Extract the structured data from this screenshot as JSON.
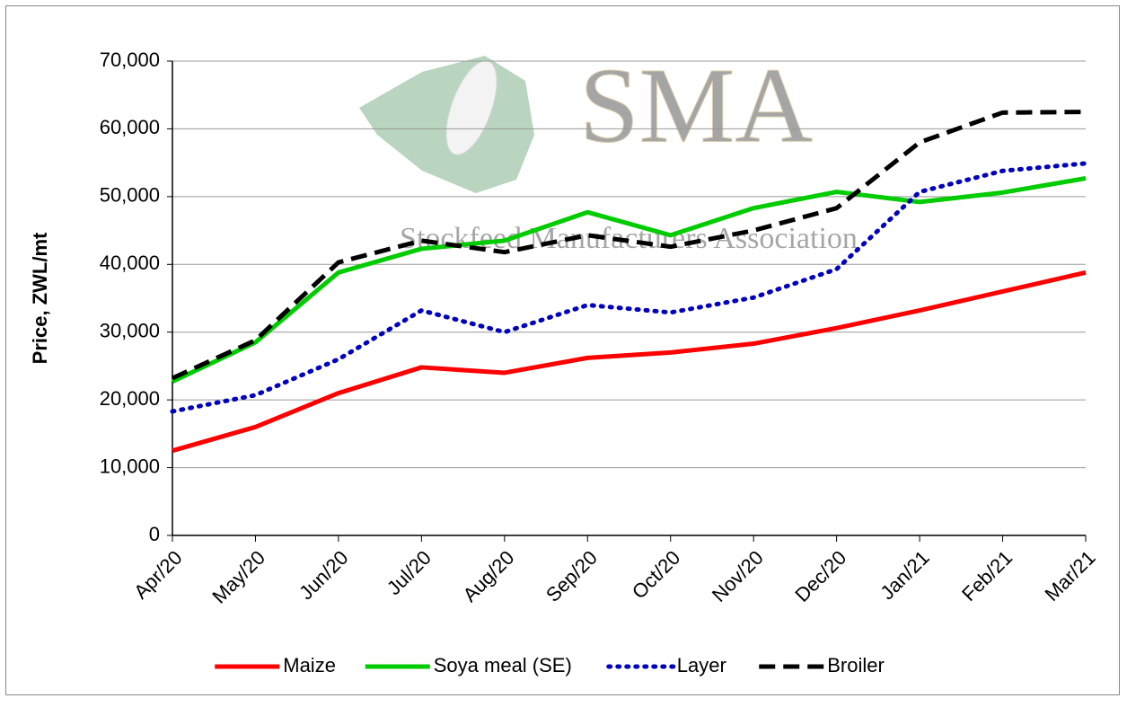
{
  "chart_data": {
    "type": "line",
    "y_label": "Price, ZWL/mt",
    "watermark": {
      "logo": "SMA",
      "subtitle": "Stockfeed Manufacturers Association"
    },
    "categories": [
      "Apr/20",
      "May/20",
      "Jun/20",
      "Jul/20",
      "Aug/20",
      "Sep/20",
      "Oct/20",
      "Nov/20",
      "Dec/20",
      "Jan/21",
      "Feb/21",
      "Mar/21"
    ],
    "series": [
      {
        "name": "Maize",
        "color": "#ff0000",
        "dash": "solid",
        "values": [
          12500,
          16000,
          21000,
          24800,
          24000,
          26200,
          27000,
          28300,
          30600,
          33200,
          36000,
          38800
        ]
      },
      {
        "name": "Soya meal (SE)",
        "color": "#00cc00",
        "dash": "solid",
        "values": [
          22700,
          28500,
          38800,
          42300,
          43500,
          47700,
          44300,
          48300,
          50700,
          49200,
          50600,
          52700
        ]
      },
      {
        "name": "Layer",
        "color": "#0000c0",
        "dash": "dotted",
        "values": [
          18300,
          20700,
          26000,
          33200,
          30000,
          34000,
          32900,
          35100,
          39300,
          50700,
          53800,
          54900
        ]
      },
      {
        "name": "Broiler",
        "color": "#000000",
        "dash": "dashed",
        "values": [
          23200,
          28800,
          40300,
          43500,
          41800,
          44300,
          42600,
          45000,
          48300,
          58000,
          62400,
          62500
        ]
      }
    ],
    "ylim": [
      0,
      70000
    ],
    "yticks": [
      0,
      {
        "value": 10000,
        "label": "10,000"
      },
      {
        "value": 20000,
        "label": "20,000"
      },
      {
        "value": 30000,
        "label": "30,000"
      },
      {
        "value": 40000,
        "label": "40,000"
      },
      {
        "value": 50000,
        "label": "50,000"
      },
      {
        "value": 60000,
        "label": "60,000"
      },
      {
        "value": 70000,
        "label": "70,000"
      }
    ],
    "grid": true,
    "legend": "bottom"
  }
}
